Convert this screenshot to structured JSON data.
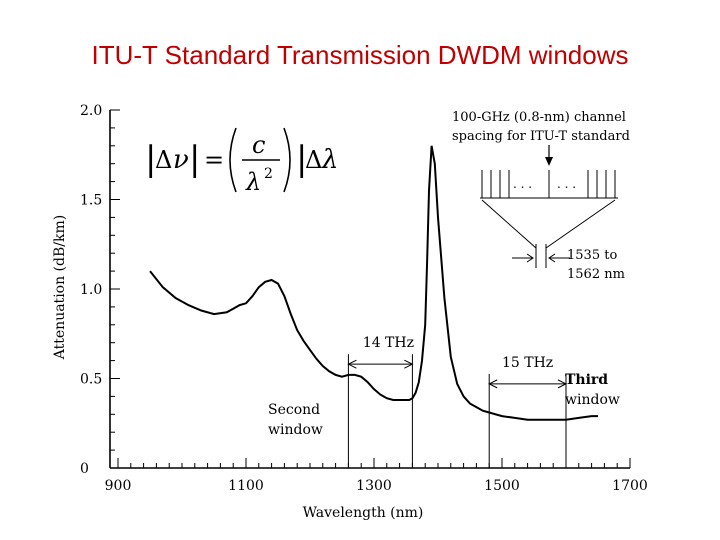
{
  "slide_title": "ITU-T Standard Transmission DWDM windows",
  "chart_data": {
    "type": "line",
    "title": "",
    "xlabel": "Wavelength (nm)",
    "ylabel": "Attenuation (dB/km)",
    "xlim": [
      900,
      1700
    ],
    "ylim": [
      0,
      2.0
    ],
    "x_ticks": [
      900,
      1100,
      1300,
      1500,
      1700
    ],
    "x_tick_labels": [
      "900",
      "1100",
      "1300",
      "1500",
      "1700"
    ],
    "y_ticks": [
      0,
      0.5,
      1.0,
      1.5,
      2.0
    ],
    "y_tick_labels": [
      "0",
      "0.5",
      "1.0",
      "1.5",
      "2.0"
    ],
    "grid": false,
    "series": [
      {
        "x": [
          950,
          970,
          990,
          1010,
          1030,
          1050,
          1070,
          1080,
          1090,
          1100,
          1110,
          1120,
          1130,
          1140,
          1150,
          1160,
          1170,
          1180,
          1190,
          1200,
          1210,
          1220,
          1230,
          1240,
          1250,
          1260,
          1270,
          1280,
          1290,
          1300,
          1310,
          1320,
          1330,
          1340,
          1350,
          1355,
          1360,
          1365,
          1370,
          1375,
          1380,
          1383,
          1386,
          1390,
          1395,
          1400,
          1410,
          1420,
          1430,
          1440,
          1450,
          1460,
          1470,
          1480,
          1500,
          1520,
          1540,
          1560,
          1580,
          1600,
          1620,
          1640,
          1650
        ],
        "y": [
          1.1,
          1.01,
          0.95,
          0.91,
          0.88,
          0.86,
          0.87,
          0.89,
          0.91,
          0.92,
          0.96,
          1.01,
          1.04,
          1.05,
          1.03,
          0.96,
          0.86,
          0.77,
          0.71,
          0.66,
          0.61,
          0.57,
          0.54,
          0.52,
          0.51,
          0.52,
          0.52,
          0.51,
          0.48,
          0.44,
          0.41,
          0.39,
          0.38,
          0.38,
          0.38,
          0.38,
          0.39,
          0.42,
          0.48,
          0.6,
          0.8,
          1.15,
          1.55,
          1.8,
          1.7,
          1.4,
          0.95,
          0.62,
          0.47,
          0.4,
          0.36,
          0.34,
          0.32,
          0.31,
          0.29,
          0.28,
          0.27,
          0.27,
          0.27,
          0.27,
          0.28,
          0.29,
          0.29
        ]
      }
    ],
    "windows": [
      {
        "label": "14 THz",
        "x_start": 1260,
        "x_end": 1360,
        "y": 0.58
      },
      {
        "label": "15 THz",
        "x_start": 1480,
        "x_end": 1600,
        "y": 0.47
      }
    ],
    "annotations": {
      "second_window": [
        "Second",
        "window"
      ],
      "third_window": [
        "Third",
        "window"
      ],
      "channel_spacing": [
        "100-GHz (0.8-nm) channel",
        "spacing for ITU-T standard"
      ],
      "range": [
        "1535 to",
        "1562 nm"
      ],
      "equation": {
        "lhs_bars": "|",
        "delta": "Δ",
        "nu": "ν",
        "equals": "=",
        "numerator": "c",
        "denominator": "λ",
        "exponent": "2",
        "lambda": "λ"
      }
    }
  }
}
